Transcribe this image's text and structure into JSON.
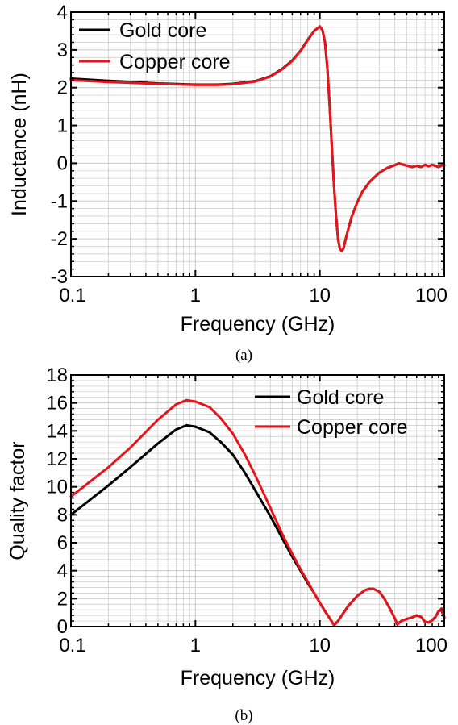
{
  "colors": {
    "gold": "#000000",
    "copper": "#e8141b",
    "grid": "#c8c8c8"
  },
  "chart_data": [
    {
      "type": "line",
      "caption": "(a)",
      "xlabel": "Frequency (GHz)",
      "ylabel": "Inductance (nH)",
      "xscale": "log",
      "xlim": [
        0.1,
        100
      ],
      "ylim": [
        -3,
        4
      ],
      "xticks": [
        0.1,
        1,
        10,
        100
      ],
      "xtick_labels": [
        "0.1",
        "1",
        "10",
        "100"
      ],
      "yticks": [
        -3,
        -2,
        -1,
        0,
        1,
        2,
        3,
        4
      ],
      "ytick_labels": [
        "-3",
        "-2",
        "-1",
        "0",
        "1",
        "2",
        "3",
        "4"
      ],
      "grid": true,
      "legend_position": "top-left",
      "series": [
        {
          "name": "Gold core",
          "color_key": "gold",
          "x": [
            0.1,
            0.2,
            0.5,
            1,
            1.5,
            2,
            3,
            4,
            5,
            6,
            7,
            8,
            9,
            10,
            10.5,
            11,
            11.5,
            12,
            12.5,
            13,
            13.5,
            14,
            14.5,
            15,
            15.5,
            16,
            17,
            18,
            20,
            22,
            25,
            30,
            35,
            40,
            43,
            45,
            50,
            55,
            60,
            65,
            70,
            75,
            80,
            85,
            90,
            95,
            100
          ],
          "y": [
            2.24,
            2.18,
            2.11,
            2.08,
            2.08,
            2.1,
            2.17,
            2.3,
            2.5,
            2.72,
            2.98,
            3.27,
            3.5,
            3.62,
            3.52,
            3.2,
            2.5,
            1.5,
            0.4,
            -0.6,
            -1.4,
            -2.0,
            -2.27,
            -2.32,
            -2.25,
            -2.05,
            -1.72,
            -1.42,
            -1.03,
            -0.75,
            -0.5,
            -0.25,
            -0.12,
            -0.05,
            0.0,
            -0.02,
            -0.06,
            -0.1,
            -0.07,
            -0.1,
            -0.04,
            -0.08,
            -0.04,
            -0.07,
            -0.1,
            -0.06,
            -0.05
          ]
        },
        {
          "name": "Copper core",
          "color_key": "copper",
          "x": [
            0.1,
            0.2,
            0.5,
            1,
            1.5,
            2,
            3,
            4,
            5,
            6,
            7,
            8,
            9,
            10,
            10.5,
            11,
            11.5,
            12,
            12.5,
            13,
            13.5,
            14,
            14.5,
            15,
            15.5,
            16,
            17,
            18,
            20,
            22,
            25,
            30,
            35,
            40,
            43,
            45,
            50,
            55,
            60,
            65,
            70,
            75,
            80,
            85,
            90,
            95,
            100
          ],
          "y": [
            2.2,
            2.15,
            2.1,
            2.07,
            2.07,
            2.09,
            2.16,
            2.29,
            2.49,
            2.71,
            2.97,
            3.26,
            3.5,
            3.62,
            3.52,
            3.2,
            2.5,
            1.5,
            0.4,
            -0.6,
            -1.4,
            -2.0,
            -2.27,
            -2.32,
            -2.25,
            -2.05,
            -1.72,
            -1.42,
            -1.03,
            -0.75,
            -0.5,
            -0.25,
            -0.12,
            -0.05,
            0.0,
            -0.02,
            -0.06,
            -0.1,
            -0.07,
            -0.1,
            -0.04,
            -0.08,
            -0.04,
            -0.07,
            -0.1,
            -0.06,
            -0.05
          ]
        }
      ]
    },
    {
      "type": "line",
      "caption": "(b)",
      "xlabel": "Frequency (GHz)",
      "ylabel": "Quality factor",
      "xscale": "log",
      "xlim": [
        0.1,
        100
      ],
      "ylim": [
        0,
        18
      ],
      "xticks": [
        0.1,
        1,
        10,
        100
      ],
      "xtick_labels": [
        "0.1",
        "1",
        "10",
        "100"
      ],
      "yticks": [
        0,
        2,
        4,
        6,
        8,
        10,
        12,
        14,
        16,
        18
      ],
      "ytick_labels": [
        "0",
        "2",
        "4",
        "6",
        "8",
        "10",
        "12",
        "14",
        "16",
        "18"
      ],
      "grid": true,
      "legend_position": "top-right",
      "series": [
        {
          "name": "Gold core",
          "color_key": "gold",
          "x": [
            0.1,
            0.2,
            0.3,
            0.5,
            0.7,
            0.85,
            1,
            1.3,
            1.6,
            2,
            2.5,
            3,
            4,
            5,
            6,
            7,
            8,
            9,
            10,
            11,
            12,
            13,
            14,
            15,
            17,
            20,
            23,
            25,
            27,
            30,
            33,
            37,
            40,
            42,
            45,
            50,
            55,
            60,
            65,
            70,
            75,
            80,
            85,
            90,
            95,
            100
          ],
          "y": [
            8.0,
            10.1,
            11.4,
            13.1,
            14.1,
            14.4,
            14.3,
            13.9,
            13.2,
            12.3,
            11.0,
            9.8,
            7.9,
            6.3,
            5.0,
            4.0,
            3.1,
            2.4,
            1.7,
            1.1,
            0.6,
            0.1,
            0.4,
            0.8,
            1.5,
            2.2,
            2.6,
            2.7,
            2.7,
            2.5,
            2.0,
            1.2,
            0.6,
            0.15,
            0.4,
            0.55,
            0.65,
            0.8,
            0.7,
            0.35,
            0.3,
            0.45,
            0.7,
            1.1,
            1.2,
            0.6
          ]
        },
        {
          "name": "Copper core",
          "color_key": "copper",
          "x": [
            0.1,
            0.2,
            0.3,
            0.5,
            0.7,
            0.85,
            1,
            1.3,
            1.6,
            2,
            2.5,
            3,
            4,
            5,
            6,
            7,
            8,
            9,
            10,
            11,
            12,
            13,
            14,
            15,
            17,
            20,
            23,
            25,
            27,
            30,
            33,
            37,
            40,
            42,
            45,
            50,
            55,
            60,
            65,
            70,
            75,
            80,
            85,
            90,
            95,
            100
          ],
          "y": [
            9.3,
            11.4,
            12.8,
            14.8,
            15.9,
            16.2,
            16.1,
            15.7,
            14.9,
            13.8,
            12.3,
            10.9,
            8.5,
            6.6,
            5.2,
            4.1,
            3.2,
            2.4,
            1.7,
            1.1,
            0.6,
            0.1,
            0.4,
            0.8,
            1.5,
            2.2,
            2.6,
            2.7,
            2.7,
            2.5,
            2.0,
            1.2,
            0.6,
            0.15,
            0.4,
            0.55,
            0.65,
            0.8,
            0.7,
            0.35,
            0.3,
            0.45,
            0.7,
            1.1,
            1.3,
            0.7
          ]
        }
      ]
    }
  ]
}
